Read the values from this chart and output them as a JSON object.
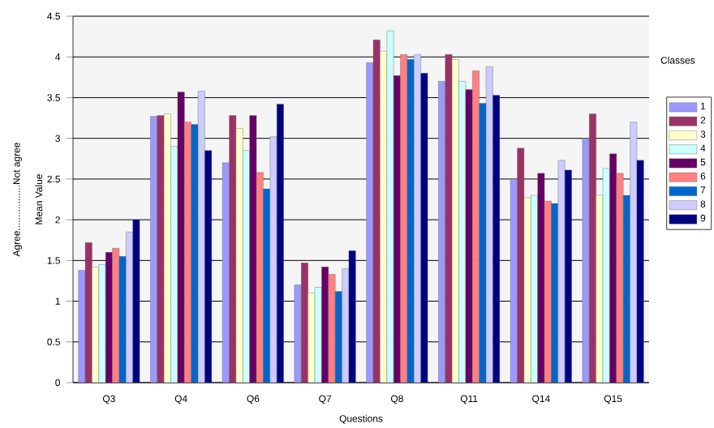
{
  "chart_data": {
    "type": "bar",
    "xlabel": "Questions",
    "ylabel": "Mean Value",
    "legend_title": "Classes",
    "annotations": [
      "Agree.................Not agree"
    ],
    "categories": [
      "Q3",
      "Q4",
      "Q6",
      "Q7",
      "Q8",
      "Q11",
      "Q14",
      "Q15"
    ],
    "series": [
      {
        "name": "1",
        "color": "#9999ff",
        "values": [
          1.38,
          3.27,
          2.7,
          1.2,
          3.93,
          3.7,
          2.5,
          3.0
        ]
      },
      {
        "name": "2",
        "color": "#993366",
        "values": [
          1.72,
          3.28,
          3.28,
          1.47,
          4.21,
          4.03,
          2.88,
          3.3
        ]
      },
      {
        "name": "3",
        "color": "#ffffcc",
        "values": [
          1.42,
          3.3,
          3.12,
          1.1,
          4.07,
          3.97,
          2.27,
          2.3
        ]
      },
      {
        "name": "4",
        "color": "#ccffff",
        "values": [
          1.45,
          2.9,
          2.85,
          1.17,
          4.32,
          3.7,
          2.3,
          2.63
        ]
      },
      {
        "name": "5",
        "color": "#660066",
        "values": [
          1.6,
          3.57,
          3.28,
          1.42,
          3.77,
          3.6,
          2.57,
          2.81
        ]
      },
      {
        "name": "6",
        "color": "#ff8080",
        "values": [
          1.65,
          3.2,
          2.58,
          1.33,
          4.03,
          3.83,
          2.23,
          2.57
        ]
      },
      {
        "name": "7",
        "color": "#0066cc",
        "values": [
          1.55,
          3.17,
          2.38,
          1.12,
          3.97,
          3.43,
          2.2,
          2.3
        ]
      },
      {
        "name": "8",
        "color": "#ccccff",
        "values": [
          1.85,
          3.58,
          3.02,
          1.4,
          4.03,
          3.88,
          2.73,
          3.2
        ]
      },
      {
        "name": "9",
        "color": "#000080",
        "values": [
          2.0,
          2.85,
          3.42,
          1.62,
          3.8,
          3.53,
          2.61,
          2.73
        ]
      }
    ],
    "ylim": [
      0,
      4.5
    ],
    "yticks": [
      0,
      0.5,
      1,
      1.5,
      2,
      2.5,
      3,
      3.5,
      4,
      4.5
    ],
    "grid": "y",
    "legend": "right"
  }
}
